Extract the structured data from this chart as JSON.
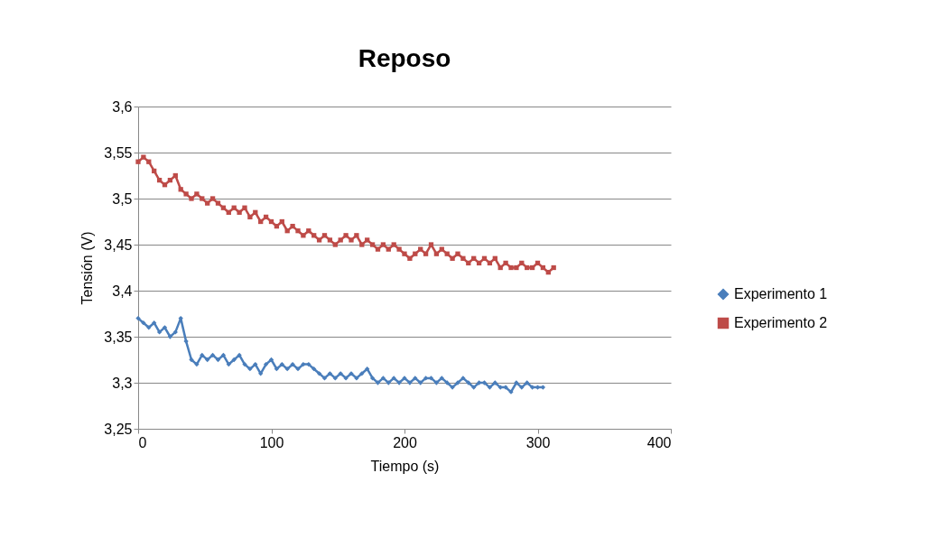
{
  "chart_data": {
    "type": "line",
    "title": "Reposo",
    "xlabel": "Tiempo (s)",
    "ylabel": "Tensión (V)",
    "xlim": [
      0,
      400
    ],
    "xticks": [
      0,
      100,
      200,
      300,
      400
    ],
    "ylim": [
      3.25,
      3.6
    ],
    "yticks": [
      {
        "value": 3.25,
        "label": "3,25"
      },
      {
        "value": 3.3,
        "label": "3,3"
      },
      {
        "value": 3.35,
        "label": "3,35"
      },
      {
        "value": 3.4,
        "label": "3,4"
      },
      {
        "value": 3.45,
        "label": "3,45"
      },
      {
        "value": 3.5,
        "label": "3,5"
      },
      {
        "value": 3.55,
        "label": "3,55"
      },
      {
        "value": 3.6,
        "label": "3,6"
      }
    ],
    "grid": "y",
    "legend": "right",
    "series": [
      {
        "name": "Experimento 1",
        "color": "#4a7ebb",
        "marker": "diamond",
        "x": [
          0,
          4,
          8,
          12,
          16,
          20,
          24,
          28,
          32,
          36,
          40,
          44,
          48,
          52,
          56,
          60,
          64,
          68,
          72,
          76,
          80,
          84,
          88,
          92,
          96,
          100,
          104,
          108,
          112,
          116,
          120,
          124,
          128,
          132,
          136,
          140,
          144,
          148,
          152,
          156,
          160,
          164,
          168,
          172,
          176,
          180,
          184,
          188,
          192,
          196,
          200,
          204,
          208,
          212,
          216,
          220,
          224,
          228,
          232,
          236,
          240,
          244,
          248,
          252,
          256,
          260,
          264,
          268,
          272,
          276,
          280,
          284,
          288,
          292,
          296,
          300,
          304
        ],
        "values": [
          3.37,
          3.365,
          3.36,
          3.365,
          3.355,
          3.36,
          3.35,
          3.355,
          3.37,
          3.345,
          3.325,
          3.32,
          3.33,
          3.325,
          3.33,
          3.325,
          3.33,
          3.32,
          3.325,
          3.33,
          3.32,
          3.315,
          3.32,
          3.31,
          3.32,
          3.325,
          3.315,
          3.32,
          3.315,
          3.32,
          3.315,
          3.32,
          3.32,
          3.315,
          3.31,
          3.305,
          3.31,
          3.305,
          3.31,
          3.305,
          3.31,
          3.305,
          3.31,
          3.315,
          3.305,
          3.3,
          3.305,
          3.3,
          3.305,
          3.3,
          3.305,
          3.3,
          3.305,
          3.3,
          3.305,
          3.305,
          3.3,
          3.305,
          3.3,
          3.295,
          3.3,
          3.305,
          3.3,
          3.295,
          3.3,
          3.3,
          3.295,
          3.3,
          3.295,
          3.295,
          3.29,
          3.3,
          3.295,
          3.3,
          3.295,
          3.295,
          3.295
        ]
      },
      {
        "name": "Experimento 2",
        "color": "#be4b48",
        "marker": "square",
        "x": [
          0,
          4,
          8,
          12,
          16,
          20,
          24,
          28,
          32,
          36,
          40,
          44,
          48,
          52,
          56,
          60,
          64,
          68,
          72,
          76,
          80,
          84,
          88,
          92,
          96,
          100,
          104,
          108,
          112,
          116,
          120,
          124,
          128,
          132,
          136,
          140,
          144,
          148,
          152,
          156,
          160,
          164,
          168,
          172,
          176,
          180,
          184,
          188,
          192,
          196,
          200,
          204,
          208,
          212,
          216,
          220,
          224,
          228,
          232,
          236,
          240,
          244,
          248,
          252,
          256,
          260,
          264,
          268,
          272,
          276,
          280,
          284,
          288,
          292,
          296,
          300,
          304,
          308,
          312
        ],
        "values": [
          3.54,
          3.545,
          3.54,
          3.53,
          3.52,
          3.515,
          3.52,
          3.525,
          3.51,
          3.505,
          3.5,
          3.505,
          3.5,
          3.495,
          3.5,
          3.495,
          3.49,
          3.485,
          3.49,
          3.485,
          3.49,
          3.48,
          3.485,
          3.475,
          3.48,
          3.475,
          3.47,
          3.475,
          3.465,
          3.47,
          3.465,
          3.46,
          3.465,
          3.46,
          3.455,
          3.46,
          3.455,
          3.45,
          3.455,
          3.46,
          3.455,
          3.46,
          3.45,
          3.455,
          3.45,
          3.445,
          3.45,
          3.445,
          3.45,
          3.445,
          3.44,
          3.435,
          3.44,
          3.445,
          3.44,
          3.45,
          3.44,
          3.445,
          3.44,
          3.435,
          3.44,
          3.435,
          3.43,
          3.435,
          3.43,
          3.435,
          3.43,
          3.435,
          3.425,
          3.43,
          3.425,
          3.425,
          3.43,
          3.425,
          3.425,
          3.43,
          3.425,
          3.42,
          3.425
        ]
      }
    ]
  }
}
